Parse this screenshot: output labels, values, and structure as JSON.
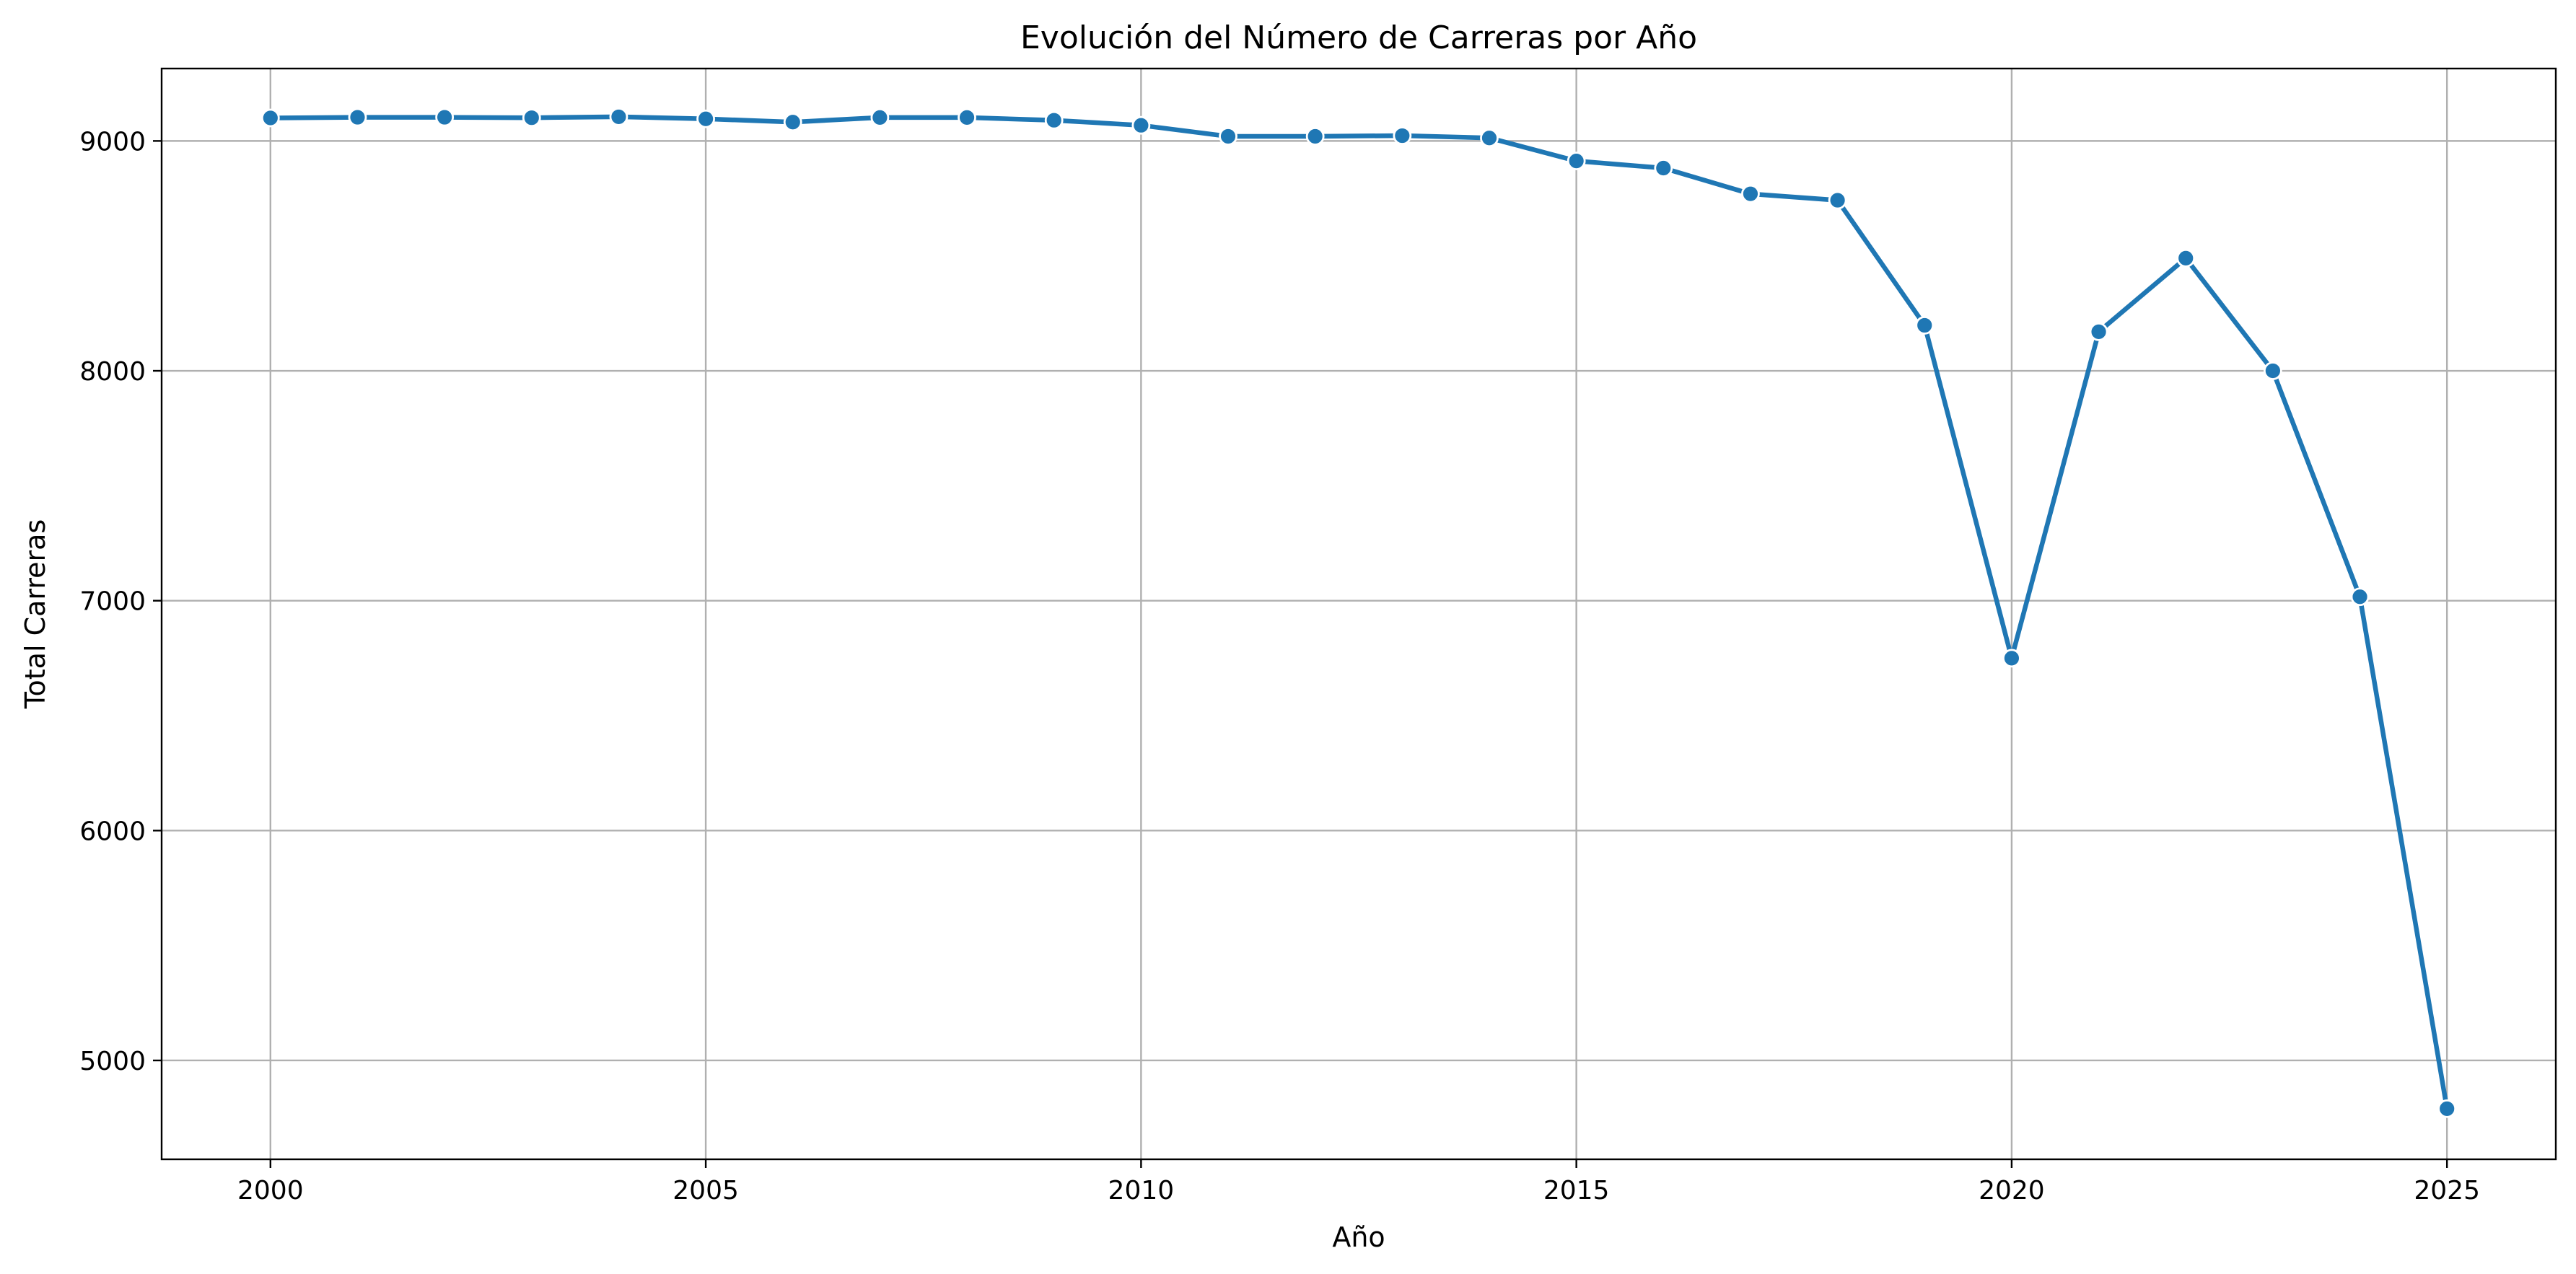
{
  "chart_data": {
    "type": "line",
    "title": "Evolución del Número de Carreras por Año",
    "xlabel": "Año",
    "ylabel": "Total Carreras",
    "xlim": [
      1998.75,
      2026.25
    ],
    "ylim": [
      4570,
      9315
    ],
    "xticks": [
      2000,
      2005,
      2010,
      2015,
      2020,
      2025
    ],
    "yticks": [
      5000,
      6000,
      7000,
      8000,
      9000
    ],
    "grid": true,
    "legend": "none",
    "series": [
      {
        "color": "#1f77b4",
        "marker": "circle",
        "x": [
          2000,
          2001,
          2002,
          2003,
          2004,
          2005,
          2006,
          2007,
          2008,
          2009,
          2010,
          2011,
          2012,
          2013,
          2014,
          2015,
          2016,
          2017,
          2018,
          2019,
          2020,
          2021,
          2022,
          2023,
          2024,
          2025
        ],
        "y": [
          9100,
          9103,
          9103,
          9101,
          9105,
          9096,
          9082,
          9102,
          9102,
          9090,
          9068,
          9020,
          9020,
          9023,
          9013,
          8913,
          8882,
          8770,
          8742,
          8198,
          6750,
          8170,
          8490,
          8000,
          7017,
          4790
        ]
      }
    ]
  }
}
